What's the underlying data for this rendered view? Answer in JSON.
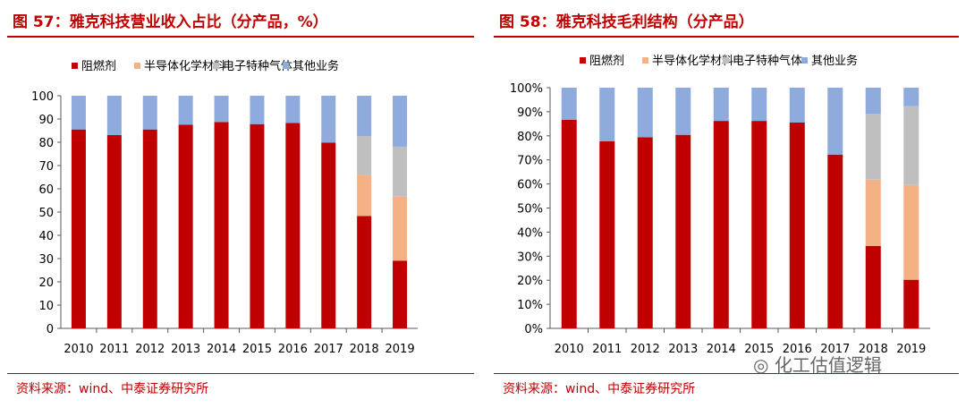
{
  "chart_data": [
    {
      "type": "bar",
      "stacked": true,
      "title": "图 57：雅克科技营业收入占比（分产品，%）",
      "ylim": [
        0,
        100
      ],
      "yticks": [
        "0",
        "10",
        "20",
        "30",
        "40",
        "50",
        "60",
        "70",
        "80",
        "90",
        "100"
      ],
      "categories": [
        "2010",
        "2011",
        "2012",
        "2013",
        "2014",
        "2015",
        "2016",
        "2017",
        "2018",
        "2019"
      ],
      "legend_position": "top",
      "grid": false,
      "series": [
        {
          "name": "阻燃剂",
          "color": "#c00000",
          "values": [
            85.5,
            83.1,
            85.5,
            87.5,
            88.7,
            87.8,
            88.3,
            79.9,
            48.3,
            29.1
          ]
        },
        {
          "name": "半导体化学材料",
          "color": "#f4b183",
          "values": [
            0,
            0,
            0,
            0,
            0,
            0,
            0,
            0,
            17.5,
            27.5
          ]
        },
        {
          "name": "电子特种气体",
          "color": "#bfbfbf",
          "values": [
            0,
            0,
            0,
            0,
            0,
            0,
            0,
            0,
            16.9,
            21.5
          ]
        },
        {
          "name": "其他业务",
          "color": "#8faadc",
          "values": [
            14.5,
            16.9,
            14.5,
            12.5,
            11.3,
            12.2,
            11.7,
            20.1,
            17.3,
            21.9
          ]
        }
      ],
      "source": "资料来源：wind、中泰证券研究所"
    },
    {
      "type": "bar",
      "stacked": true,
      "title": "图 58：雅克科技毛利结构（分产品）",
      "ylim": [
        0,
        100
      ],
      "yticks": [
        "0%",
        "10%",
        "20%",
        "30%",
        "40%",
        "50%",
        "60%",
        "70%",
        "80%",
        "90%",
        "100%"
      ],
      "categories": [
        "2010",
        "2011",
        "2012",
        "2013",
        "2014",
        "2015",
        "2016",
        "2017",
        "2018",
        "2019"
      ],
      "legend_position": "top",
      "grid": false,
      "series": [
        {
          "name": "阻燃剂",
          "color": "#c00000",
          "values": [
            86.7,
            77.7,
            79.4,
            80.4,
            86.2,
            86.2,
            85.5,
            72.2,
            34.2,
            20.2
          ]
        },
        {
          "name": "半导体化学材料",
          "color": "#f4b183",
          "values": [
            0,
            0,
            0,
            0,
            0,
            0,
            0,
            0,
            27.6,
            39.4
          ]
        },
        {
          "name": "电子特种气体",
          "color": "#bfbfbf",
          "values": [
            0,
            0,
            0,
            0,
            0,
            0,
            0,
            0,
            27.3,
            32.7
          ]
        },
        {
          "name": "其他业务",
          "color": "#8faadc",
          "values": [
            13.3,
            22.3,
            20.6,
            19.6,
            13.8,
            13.8,
            14.5,
            27.8,
            10.9,
            7.7
          ]
        }
      ],
      "source": "资料来源：wind、中泰证券研究所"
    }
  ],
  "watermark": "化工估值逻辑"
}
